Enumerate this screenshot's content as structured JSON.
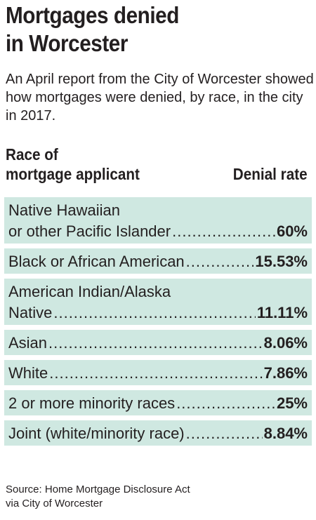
{
  "title_line1": "Mortgages denied",
  "title_line2": "in Worcester",
  "subtitle": "An April report from the City of Worcester showed how mortgages were denied, by race, in the city in 2017.",
  "column_headers": {
    "left_line1": "Race of",
    "left_line2": "mortgage applicant",
    "right": "Denial rate"
  },
  "source_line1": "Source: Home Mortgage Disclosure Act",
  "source_line2": "via City of Worcester",
  "colors": {
    "row_background": "#cfe8e1",
    "text": "#231f20"
  },
  "chart_data": {
    "type": "table",
    "title": "Mortgages denied in Worcester",
    "columns": [
      "Race of mortgage applicant",
      "Denial rate"
    ],
    "rows": [
      {
        "label_line1": "Native Hawaiian",
        "label_line2": "or other Pacific Islander",
        "value": "60%"
      },
      {
        "label_line1": "",
        "label_line2": "Black or African American",
        "value": "15.53%"
      },
      {
        "label_line1": "American Indian/Alaska",
        "label_line2": "Native",
        "value": "11.11%"
      },
      {
        "label_line1": "",
        "label_line2": "Asian",
        "value": "8.06%"
      },
      {
        "label_line1": "",
        "label_line2": "White",
        "value": "7.86%"
      },
      {
        "label_line1": "",
        "label_line2": "2 or more minority races",
        "value": "25%"
      },
      {
        "label_line1": "",
        "label_line2": "Joint (white/minority race)",
        "value": "8.84%"
      }
    ]
  }
}
